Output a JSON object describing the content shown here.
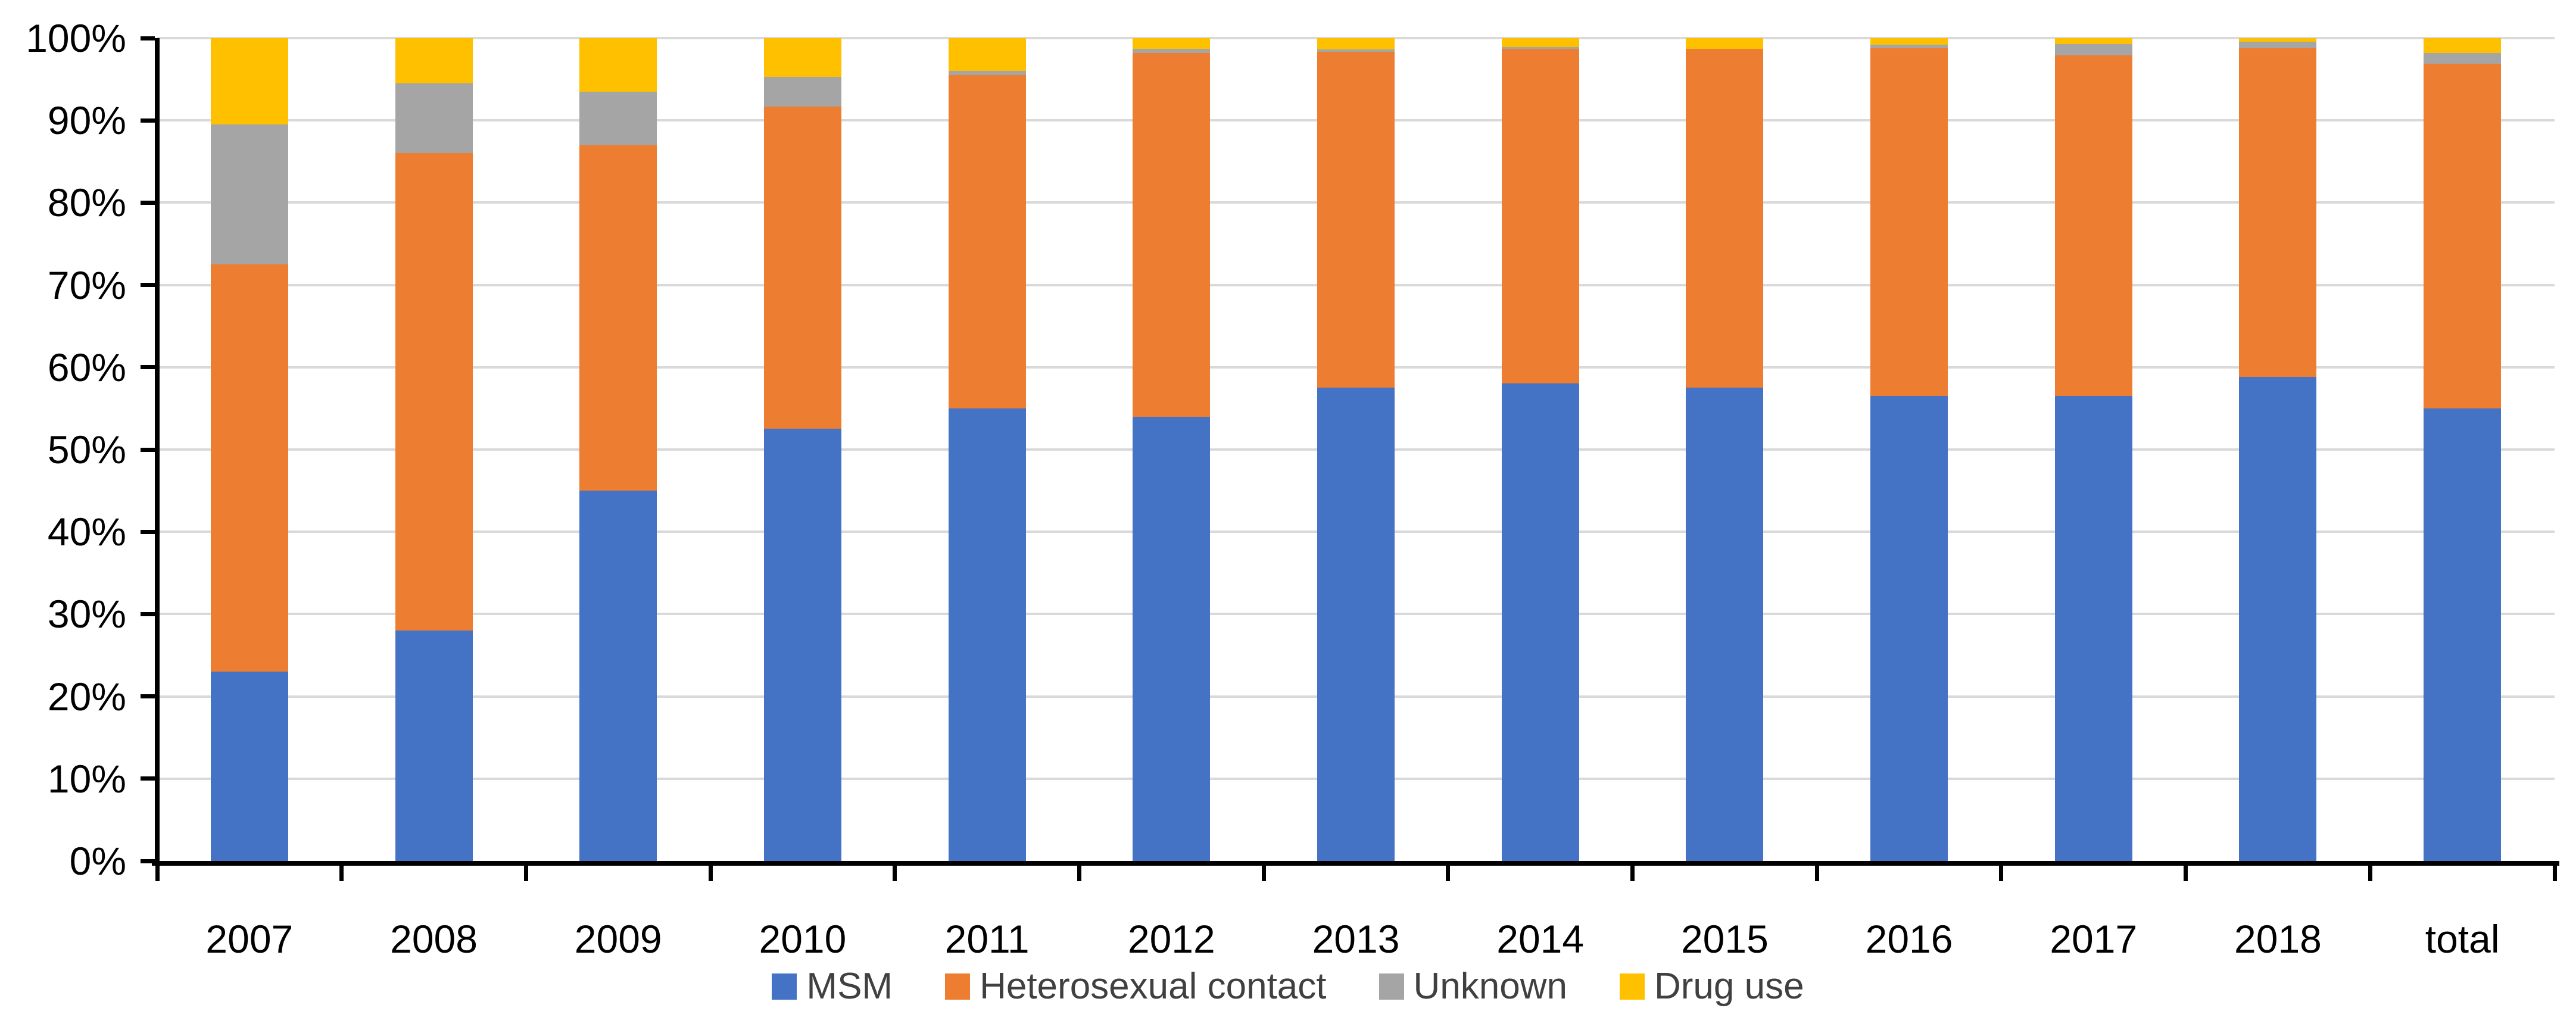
{
  "chart_data": {
    "type": "bar",
    "subtype": "stacked-100-percent",
    "categories": [
      "2007",
      "2008",
      "2009",
      "2010",
      "2011",
      "2012",
      "2013",
      "2014",
      "2015",
      "2016",
      "2017",
      "2018",
      "total"
    ],
    "series": [
      {
        "name": "MSM",
        "color": "#4472C4",
        "values": [
          23.0,
          28.0,
          45.0,
          52.5,
          55.0,
          54.0,
          57.5,
          58.0,
          57.5,
          56.5,
          56.5,
          58.8,
          55.0
        ]
      },
      {
        "name": "Heterosexual contact",
        "color": "#ED7D31",
        "values": [
          49.5,
          58.0,
          42.0,
          39.2,
          40.5,
          44.2,
          40.8,
          40.7,
          41.2,
          42.3,
          41.4,
          40.0,
          41.9
        ]
      },
      {
        "name": "Unknown",
        "color": "#A5A5A5",
        "values": [
          17.0,
          8.5,
          6.5,
          3.6,
          0.5,
          0.5,
          0.3,
          0.2,
          0.0,
          0.4,
          1.4,
          0.8,
          1.3
        ]
      },
      {
        "name": "Drug use",
        "color": "#FFC000",
        "values": [
          10.5,
          5.5,
          6.5,
          4.7,
          4.0,
          1.3,
          1.4,
          1.1,
          1.3,
          0.8,
          0.7,
          0.4,
          1.8
        ]
      }
    ],
    "y_axis": {
      "min": 0,
      "max": 100,
      "unit": "%",
      "ticks": [
        {
          "label": "100%",
          "value": 100
        },
        {
          "label": "90%",
          "value": 90
        },
        {
          "label": "80%",
          "value": 80
        },
        {
          "label": "70%",
          "value": 70
        },
        {
          "label": "60%",
          "value": 60
        },
        {
          "label": "50%",
          "value": 50
        },
        {
          "label": "40%",
          "value": 40
        },
        {
          "label": "30%",
          "value": 30
        },
        {
          "label": "20%",
          "value": 20
        },
        {
          "label": "10%",
          "value": 10
        },
        {
          "label": "0%",
          "value": 0
        }
      ]
    },
    "legend": {
      "position": "bottom",
      "marker": "square",
      "items": [
        "MSM",
        "Heterosexual contact",
        "Unknown",
        "Drug use"
      ]
    },
    "grid": true,
    "colors": {
      "gridline": "#D9D9D9",
      "axis_line": "#000000",
      "axis_text": "#000000",
      "legend_text": "#404040",
      "background": "#FFFFFF"
    }
  }
}
